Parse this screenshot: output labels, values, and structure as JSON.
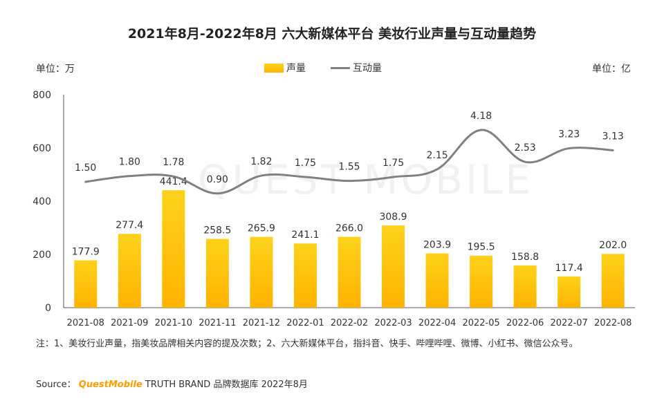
{
  "title": "2021年8月-2022年8月 六大新媒体平台 美妆行业声量与互动量趋势",
  "unit_left": "单位：万",
  "unit_right": "单位：亿",
  "legend": {
    "bar": "声量",
    "line": "互动量"
  },
  "note": "注：1、美妆行业声量，指美妆品牌相关内容的提及次数；2、六大新媒体平台，指抖音、快手、哔哩哔哩、微博、小红书、微信公众号。",
  "source": {
    "prefix": "Source：",
    "brand": "QuestMobile",
    "suffix": "TRUTH BRAND 品牌数据库 2022年8月"
  },
  "watermark": "QUEST MOBILE",
  "colors": {
    "bar_top": "#fdd21c",
    "bar_bottom": "#ffb300",
    "line": "#808080",
    "axis": "#555555",
    "text": "#333333"
  },
  "chart_data": {
    "type": "bar+line",
    "categories": [
      "2021-08",
      "2021-09",
      "2021-10",
      "2021-11",
      "2021-12",
      "2022-01",
      "2022-02",
      "2022-03",
      "2022-04",
      "2022-05",
      "2022-06",
      "2022-07",
      "2022-08"
    ],
    "series": [
      {
        "name": "声量",
        "type": "bar",
        "axis": "left",
        "values": [
          177.9,
          277.4,
          441.4,
          258.5,
          265.9,
          241.1,
          266.0,
          308.9,
          203.9,
          195.5,
          158.8,
          117.4,
          202.0
        ],
        "labels": [
          "177.9",
          "277.4",
          "441.4",
          "258.5",
          "265.9",
          "241.1",
          "266.0",
          "308.9",
          "203.9",
          "195.5",
          "158.8",
          "117.4",
          "202.0"
        ]
      },
      {
        "name": "互动量",
        "type": "line",
        "axis": "right",
        "values": [
          1.5,
          1.8,
          1.78,
          0.9,
          1.82,
          1.75,
          1.55,
          1.75,
          2.15,
          4.18,
          2.53,
          3.23,
          3.13
        ],
        "labels": [
          "1.50",
          "1.80",
          "1.78",
          "0.90",
          "1.82",
          "1.75",
          "1.55",
          "1.75",
          "2.15",
          "4.18",
          "2.53",
          "3.23",
          "3.13"
        ]
      }
    ],
    "y_left": {
      "ticks": [
        "0",
        "200",
        "400",
        "600",
        "800"
      ],
      "range": [
        0,
        800
      ]
    },
    "y_right": {
      "range": [
        -5,
        6
      ]
    },
    "grid": false,
    "legend_position": "top-center"
  }
}
